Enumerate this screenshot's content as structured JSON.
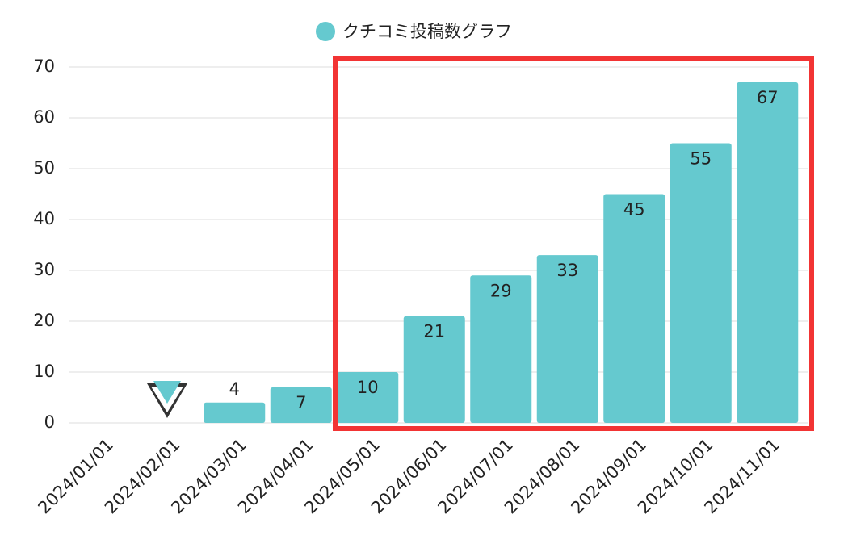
{
  "chart_data": {
    "type": "bar",
    "categories": [
      "2024/01/01",
      "2024/02/01",
      "2024/03/01",
      "2024/04/01",
      "2024/05/01",
      "2024/06/01",
      "2024/07/01",
      "2024/08/01",
      "2024/09/01",
      "2024/10/01",
      "2024/11/01"
    ],
    "series": [
      {
        "name": "クチコミ投稿数グラフ",
        "color": "#65c9cf",
        "values": [
          null,
          null,
          4,
          7,
          10,
          21,
          29,
          33,
          45,
          55,
          67
        ]
      }
    ],
    "ylim": [
      0,
      70
    ],
    "yticks": [
      0,
      10,
      20,
      30,
      40,
      50,
      60,
      70
    ],
    "grid": true
  }
}
